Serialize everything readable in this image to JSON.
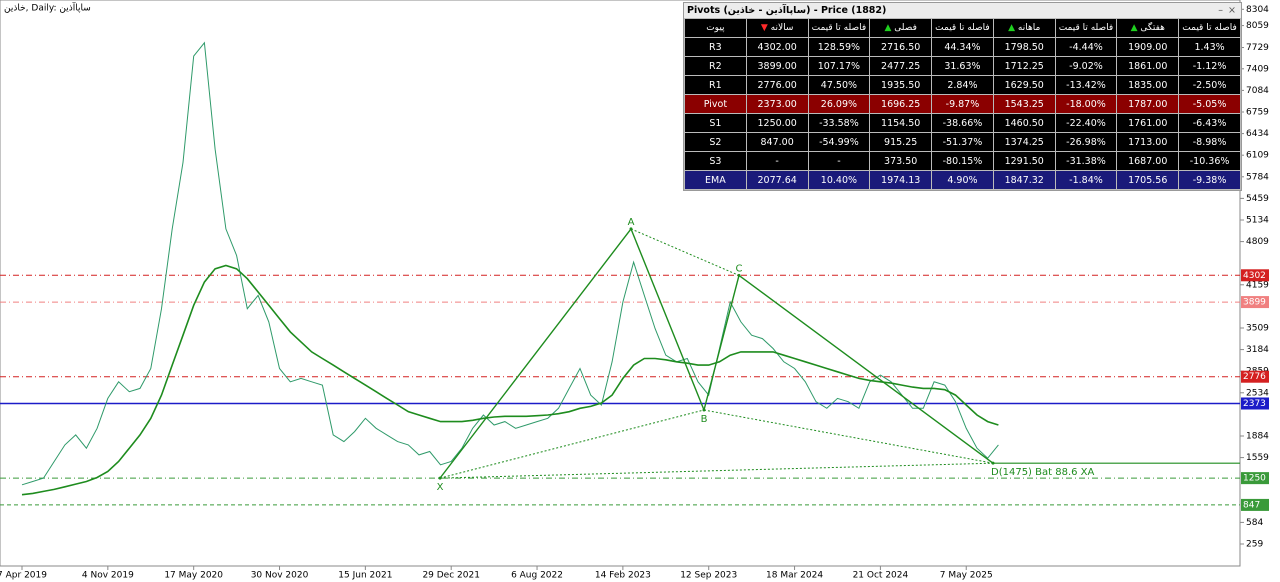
{
  "chart_data": {
    "type": "line",
    "header": "خاذین, Daily: ساپاآذین",
    "categories": [
      "7 Apr 2019",
      null,
      null,
      null,
      null,
      null,
      null,
      null,
      "4 Nov 2019",
      null,
      null,
      null,
      null,
      null,
      null,
      null,
      "17 May 2020",
      null,
      null,
      null,
      null,
      null,
      null,
      null,
      "30 Nov 2020",
      null,
      null,
      null,
      null,
      null,
      null,
      null,
      "15 Jun 2021",
      null,
      null,
      null,
      null,
      null,
      null,
      null,
      "29 Dec 2021",
      null,
      null,
      null,
      null,
      null,
      null,
      null,
      "6 Aug 2022",
      null,
      null,
      null,
      null,
      null,
      null,
      null,
      "14 Feb 2023",
      null,
      null,
      null,
      null,
      null,
      null,
      null,
      "12 Sep 2023",
      null,
      null,
      null,
      null,
      null,
      null,
      null,
      "18 Mar 2024",
      null,
      null,
      null,
      null,
      null,
      null,
      null,
      "21 Oct 2024",
      null,
      null,
      null,
      null,
      null,
      null,
      null,
      "7 May 2025",
      null,
      null,
      null
    ],
    "series": [
      {
        "name": "Price",
        "color": "#2f9a6a",
        "values": [
          1150,
          1200,
          1250,
          1500,
          1750,
          1900,
          1700,
          2000,
          2450,
          2700,
          2550,
          2600,
          2900,
          3800,
          5000,
          6000,
          7600,
          7800,
          6200,
          5000,
          4600,
          3800,
          4000,
          3600,
          2900,
          2700,
          2750,
          2700,
          2650,
          1900,
          1800,
          1950,
          2150,
          2000,
          1900,
          1800,
          1750,
          1600,
          1650,
          1450,
          1500,
          1700,
          2000,
          2200,
          2050,
          2100,
          2000,
          2050,
          2100,
          2150,
          2300,
          2600,
          2900,
          2500,
          2350,
          3000,
          3900,
          4500,
          4000,
          3500,
          3100,
          3000,
          3050,
          2700,
          2500,
          3200,
          3900,
          3600,
          3400,
          3350,
          3200,
          3000,
          2900,
          2700,
          2400,
          2300,
          2450,
          2400,
          2300,
          2700,
          2800,
          2700,
          2500,
          2300,
          2300,
          2700,
          2650,
          2400,
          2000,
          1700,
          1550,
          1750
        ]
      },
      {
        "name": "EMA",
        "color": "#1e8c1e",
        "values": [
          1000,
          1020,
          1050,
          1080,
          1120,
          1160,
          1200,
          1260,
          1350,
          1500,
          1700,
          1900,
          2150,
          2500,
          2950,
          3400,
          3850,
          4200,
          4400,
          4450,
          4400,
          4250,
          4050,
          3850,
          3650,
          3450,
          3300,
          3150,
          3050,
          2950,
          2850,
          2750,
          2650,
          2550,
          2450,
          2350,
          2250,
          2200,
          2150,
          2100,
          2100,
          2100,
          2120,
          2150,
          2170,
          2180,
          2180,
          2180,
          2190,
          2200,
          2220,
          2250,
          2300,
          2330,
          2380,
          2500,
          2750,
          2950,
          3050,
          3050,
          3030,
          3000,
          2980,
          2950,
          2950,
          3000,
          3100,
          3150,
          3150,
          3150,
          3150,
          3100,
          3050,
          3000,
          2950,
          2900,
          2850,
          2800,
          2750,
          2720,
          2700,
          2680,
          2650,
          2620,
          2600,
          2600,
          2580,
          2500,
          2350,
          2200,
          2100,
          2050
        ]
      }
    ],
    "ylim": [
      -57,
      8444
    ],
    "yticks": [
      8304,
      8059,
      7729,
      7409,
      7084,
      6759,
      6434,
      6109,
      5784,
      5459,
      5134,
      4809,
      4159,
      3509,
      3184,
      2859,
      2534,
      1884,
      1559,
      584,
      259
    ],
    "levels": [
      {
        "value": 4302,
        "color": "#d42020",
        "style": "dashdot"
      },
      {
        "value": 3899,
        "color": "#f08080",
        "style": "dashdot"
      },
      {
        "value": 2776,
        "color": "#d42020",
        "style": "dashdot"
      },
      {
        "value": 2373,
        "color": "#1c1cc8",
        "style": "solid"
      },
      {
        "value": 1250,
        "color": "#3a9a3a",
        "style": "dashdot"
      },
      {
        "value": 847,
        "color": "#3a9a3a",
        "style": "dash"
      }
    ],
    "pattern": {
      "color": "#1e8c1e",
      "labels": [
        "X",
        "A",
        "B",
        "C",
        "D(1475) Bat 88.6 XA"
      ],
      "values": [
        1250,
        5000,
        2275,
        4300,
        1475
      ]
    }
  },
  "pivot_table": {
    "title": "Pivots (ساپاآذین - خاذین) - Price (1882)",
    "headers": [
      "پیوت",
      "سالانه",
      "فاصله تا قیمت",
      "فصلی",
      "فاصله تا قیمت",
      "ماهانه",
      "فاصله تا قیمت",
      "هفتگی",
      "فاصله تا قیمت"
    ],
    "row_colors": [
      "#000000",
      "#000000",
      "#000000",
      "#8b0000",
      "#000000",
      "#000000",
      "#000000",
      "#1a1a7a"
    ],
    "rows": [
      [
        "R3",
        "4302.00",
        "128.59%",
        "2716.50",
        "44.34%",
        "1798.50",
        "-4.44%",
        "1909.00",
        "1.43%"
      ],
      [
        "R2",
        "3899.00",
        "107.17%",
        "2477.25",
        "31.63%",
        "1712.25",
        "-9.02%",
        "1861.00",
        "-1.12%"
      ],
      [
        "R1",
        "2776.00",
        "47.50%",
        "1935.50",
        "2.84%",
        "1629.50",
        "-13.42%",
        "1835.00",
        "-2.50%"
      ],
      [
        "Pivot",
        "2373.00",
        "26.09%",
        "1696.25",
        "-9.87%",
        "1543.25",
        "-18.00%",
        "1787.00",
        "-5.05%"
      ],
      [
        "S1",
        "1250.00",
        "-33.58%",
        "1154.50",
        "-38.66%",
        "1460.50",
        "-22.40%",
        "1761.00",
        "-6.43%"
      ],
      [
        "S2",
        "847.00",
        "-54.99%",
        "915.25",
        "-51.37%",
        "1374.25",
        "-26.98%",
        "1713.00",
        "-8.98%"
      ],
      [
        "S3",
        "-",
        "-",
        "373.50",
        "-80.15%",
        "1291.50",
        "-31.38%",
        "1687.00",
        "-10.36%"
      ],
      [
        "EMA",
        "2077.64",
        "10.40%",
        "1974.13",
        "4.90%",
        "1847.32",
        "-1.84%",
        "1705.56",
        "-9.38%"
      ]
    ]
  }
}
